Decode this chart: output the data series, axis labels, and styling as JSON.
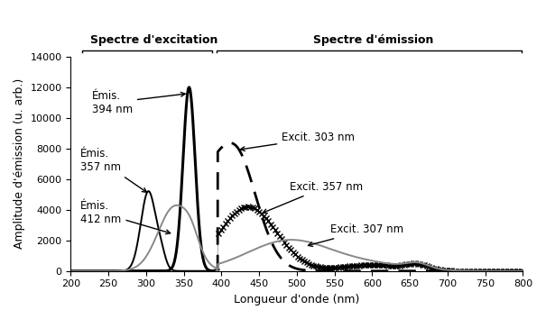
{
  "title_left": "Spectre d'excitation",
  "title_right": "Spectre d'émission",
  "xlabel": "Longueur d'onde (nm)",
  "ylabel": "Amplitude d'émission (u. arb.)",
  "xlim": [
    200,
    800
  ],
  "ylim": [
    0,
    14000
  ],
  "yticks": [
    0,
    2000,
    4000,
    6000,
    8000,
    10000,
    12000,
    14000
  ],
  "xticks": [
    200,
    250,
    300,
    350,
    400,
    450,
    500,
    550,
    600,
    650,
    700,
    750,
    800
  ],
  "figsize": [
    6.05,
    3.54
  ],
  "dpi": 100
}
